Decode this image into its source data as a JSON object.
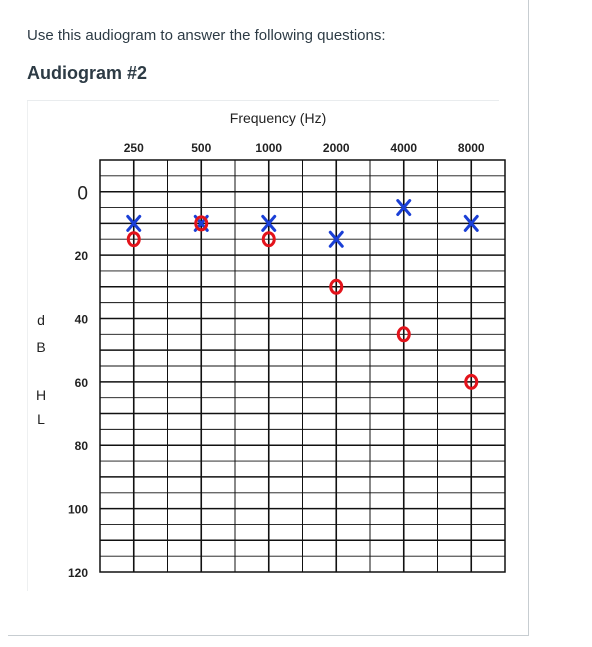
{
  "intro_text": "Use this audiogram to answer the following questions:",
  "heading": "Audiogram #2",
  "chart_data": {
    "type": "scatter",
    "title": "Frequency (Hz)",
    "xlabel": "Frequency (Hz)",
    "ylabel": "dB HL",
    "ylabel_letters": [
      "d",
      "B",
      "H",
      "L"
    ],
    "x_ticks": [
      "250",
      "500",
      "1000",
      "2000",
      "4000",
      "8000"
    ],
    "y_ticks": [
      "0",
      "20",
      "40",
      "60",
      "80",
      "100",
      "120"
    ],
    "ylim": [
      -10,
      120
    ],
    "y_reversed": true,
    "grid": true,
    "series": [
      {
        "name": "",
        "symbol": "X",
        "color": "#1a3fd6",
        "x": [
          "250",
          "500",
          "1000",
          "2000",
          "4000",
          "8000"
        ],
        "values": [
          10,
          10,
          10,
          15,
          5,
          10
        ]
      },
      {
        "name": "",
        "symbol": "O",
        "color": "#e3131b",
        "x": [
          "250",
          "500",
          "1000",
          "2000",
          "4000",
          "8000"
        ],
        "values": [
          15,
          10,
          15,
          30,
          45,
          60
        ]
      }
    ]
  }
}
